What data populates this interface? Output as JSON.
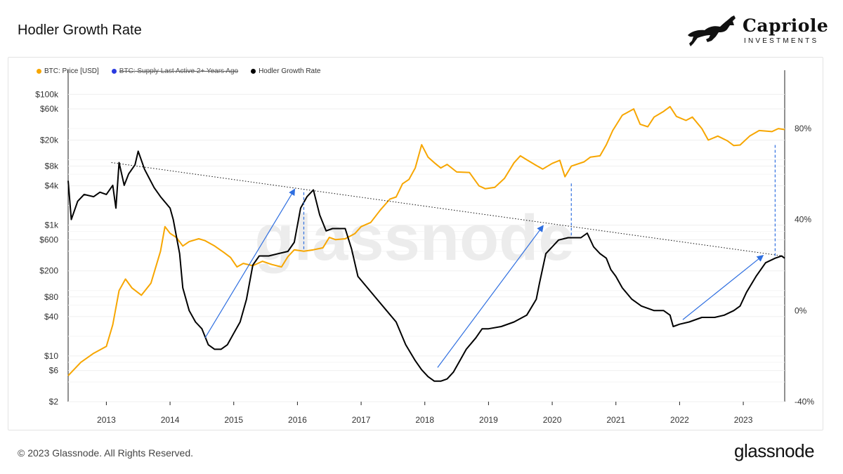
{
  "header": {
    "title": "Hodler Growth Rate"
  },
  "brand": {
    "name": "Capriole",
    "subtitle": "INVESTMENTS"
  },
  "watermark": "glassnode",
  "footer": {
    "copyright": "© 2023 Glassnode. All Rights Reserved.",
    "logo": "glassnode"
  },
  "legend": [
    {
      "label": "BTC: Price [USD]",
      "color": "#f7a600",
      "disabled": false
    },
    {
      "label": "BTC: Supply Last Active 2+ Years Ago",
      "color": "#2a3ae0",
      "disabled": true
    },
    {
      "label": "Hodler Growth Rate",
      "color": "#000000",
      "disabled": false
    }
  ],
  "chart_data": {
    "type": "line",
    "title": "Hodler Growth Rate",
    "x_ticks": [
      "2013",
      "2014",
      "2015",
      "2016",
      "2017",
      "2018",
      "2019",
      "2020",
      "2021",
      "2022",
      "2023"
    ],
    "x_range": [
      2012.4,
      2023.65
    ],
    "y_left": {
      "scale": "log",
      "range": [
        2,
        150000
      ],
      "tick_labels": [
        "$100k",
        "$60k",
        "$20k",
        "$8k",
        "$4k",
        "$1k",
        "$600",
        "$200",
        "$80",
        "$40",
        "$10",
        "$6",
        "$2"
      ],
      "tick_values": [
        100000,
        60000,
        20000,
        8000,
        4000,
        1000,
        600,
        200,
        80,
        40,
        10,
        6,
        2
      ]
    },
    "y_right": {
      "scale": "linear",
      "range": [
        -40,
        100
      ],
      "tick_labels": [
        "80%",
        "40%",
        "0%",
        "-40%"
      ],
      "tick_values": [
        80,
        40,
        0,
        -40
      ]
    },
    "grid": true,
    "legend_position": "top-left",
    "series": [
      {
        "name": "BTC: Price [USD]",
        "axis": "left",
        "color": "#f7a600",
        "points": [
          [
            2012.4,
            5
          ],
          [
            2012.6,
            8
          ],
          [
            2012.8,
            11
          ],
          [
            2013.0,
            14
          ],
          [
            2013.1,
            30
          ],
          [
            2013.2,
            100
          ],
          [
            2013.3,
            150
          ],
          [
            2013.4,
            110
          ],
          [
            2013.55,
            85
          ],
          [
            2013.7,
            130
          ],
          [
            2013.85,
            400
          ],
          [
            2013.92,
            950
          ],
          [
            2014.0,
            750
          ],
          [
            2014.1,
            650
          ],
          [
            2014.2,
            480
          ],
          [
            2014.3,
            560
          ],
          [
            2014.45,
            620
          ],
          [
            2014.55,
            580
          ],
          [
            2014.7,
            480
          ],
          [
            2014.85,
            380
          ],
          [
            2014.95,
            320
          ],
          [
            2015.05,
            230
          ],
          [
            2015.15,
            260
          ],
          [
            2015.3,
            240
          ],
          [
            2015.45,
            280
          ],
          [
            2015.6,
            250
          ],
          [
            2015.75,
            230
          ],
          [
            2015.85,
            330
          ],
          [
            2015.95,
            420
          ],
          [
            2016.1,
            400
          ],
          [
            2016.25,
            420
          ],
          [
            2016.4,
            450
          ],
          [
            2016.5,
            650
          ],
          [
            2016.6,
            600
          ],
          [
            2016.75,
            620
          ],
          [
            2016.9,
            740
          ],
          [
            2017.0,
            950
          ],
          [
            2017.15,
            1100
          ],
          [
            2017.3,
            1700
          ],
          [
            2017.45,
            2500
          ],
          [
            2017.55,
            2700
          ],
          [
            2017.65,
            4300
          ],
          [
            2017.75,
            5000
          ],
          [
            2017.85,
            7500
          ],
          [
            2017.95,
            17000
          ],
          [
            2018.05,
            11000
          ],
          [
            2018.15,
            9000
          ],
          [
            2018.25,
            7500
          ],
          [
            2018.35,
            8500
          ],
          [
            2018.5,
            6500
          ],
          [
            2018.7,
            6400
          ],
          [
            2018.85,
            4000
          ],
          [
            2018.95,
            3600
          ],
          [
            2019.1,
            3800
          ],
          [
            2019.25,
            5200
          ],
          [
            2019.4,
            9000
          ],
          [
            2019.5,
            11500
          ],
          [
            2019.6,
            10000
          ],
          [
            2019.75,
            8200
          ],
          [
            2019.85,
            7200
          ],
          [
            2020.0,
            8800
          ],
          [
            2020.12,
            9800
          ],
          [
            2020.2,
            5500
          ],
          [
            2020.3,
            8000
          ],
          [
            2020.5,
            9300
          ],
          [
            2020.6,
            11000
          ],
          [
            2020.75,
            11500
          ],
          [
            2020.85,
            17000
          ],
          [
            2020.95,
            28000
          ],
          [
            2021.1,
            48000
          ],
          [
            2021.28,
            60000
          ],
          [
            2021.38,
            35000
          ],
          [
            2021.5,
            32000
          ],
          [
            2021.6,
            45000
          ],
          [
            2021.75,
            55000
          ],
          [
            2021.85,
            65000
          ],
          [
            2021.95,
            46000
          ],
          [
            2022.1,
            40000
          ],
          [
            2022.2,
            45000
          ],
          [
            2022.35,
            30000
          ],
          [
            2022.45,
            20000
          ],
          [
            2022.6,
            23000
          ],
          [
            2022.75,
            19500
          ],
          [
            2022.85,
            16500
          ],
          [
            2022.95,
            16800
          ],
          [
            2023.1,
            23000
          ],
          [
            2023.25,
            28000
          ],
          [
            2023.45,
            27000
          ],
          [
            2023.55,
            30000
          ],
          [
            2023.65,
            29000
          ]
        ]
      },
      {
        "name": "Hodler Growth Rate",
        "axis": "right",
        "color": "#000000",
        "points": [
          [
            2012.4,
            57
          ],
          [
            2012.45,
            40
          ],
          [
            2012.55,
            48
          ],
          [
            2012.65,
            51
          ],
          [
            2012.8,
            50
          ],
          [
            2012.9,
            52
          ],
          [
            2013.0,
            51
          ],
          [
            2013.1,
            55
          ],
          [
            2013.15,
            45
          ],
          [
            2013.2,
            65
          ],
          [
            2013.28,
            55
          ],
          [
            2013.35,
            60
          ],
          [
            2013.45,
            64
          ],
          [
            2013.5,
            70
          ],
          [
            2013.6,
            62
          ],
          [
            2013.75,
            54
          ],
          [
            2013.85,
            50
          ],
          [
            2014.0,
            45
          ],
          [
            2014.05,
            40
          ],
          [
            2014.15,
            25
          ],
          [
            2014.2,
            10
          ],
          [
            2014.3,
            0
          ],
          [
            2014.4,
            -5
          ],
          [
            2014.5,
            -8
          ],
          [
            2014.6,
            -15
          ],
          [
            2014.7,
            -17
          ],
          [
            2014.8,
            -17
          ],
          [
            2014.9,
            -15
          ],
          [
            2015.0,
            -10
          ],
          [
            2015.1,
            -5
          ],
          [
            2015.2,
            5
          ],
          [
            2015.3,
            20
          ],
          [
            2015.4,
            24
          ],
          [
            2015.55,
            24
          ],
          [
            2015.7,
            25
          ],
          [
            2015.85,
            26
          ],
          [
            2015.95,
            30
          ],
          [
            2016.05,
            45
          ],
          [
            2016.15,
            50
          ],
          [
            2016.25,
            53
          ],
          [
            2016.35,
            42
          ],
          [
            2016.45,
            35
          ],
          [
            2016.55,
            36
          ],
          [
            2016.75,
            36
          ],
          [
            2016.85,
            27
          ],
          [
            2016.95,
            15
          ],
          [
            2017.1,
            10
          ],
          [
            2017.25,
            5
          ],
          [
            2017.4,
            0
          ],
          [
            2017.55,
            -5
          ],
          [
            2017.7,
            -15
          ],
          [
            2017.85,
            -22
          ],
          [
            2017.95,
            -26
          ],
          [
            2018.05,
            -29
          ],
          [
            2018.15,
            -31
          ],
          [
            2018.25,
            -31
          ],
          [
            2018.35,
            -30
          ],
          [
            2018.45,
            -27
          ],
          [
            2018.55,
            -22
          ],
          [
            2018.65,
            -17
          ],
          [
            2018.8,
            -12
          ],
          [
            2018.9,
            -8
          ],
          [
            2019.0,
            -8
          ],
          [
            2019.2,
            -7
          ],
          [
            2019.4,
            -5
          ],
          [
            2019.6,
            -2
          ],
          [
            2019.75,
            5
          ],
          [
            2019.8,
            12
          ],
          [
            2019.9,
            25
          ],
          [
            2020.0,
            28
          ],
          [
            2020.1,
            31
          ],
          [
            2020.25,
            32
          ],
          [
            2020.45,
            32
          ],
          [
            2020.55,
            34
          ],
          [
            2020.65,
            28
          ],
          [
            2020.75,
            25
          ],
          [
            2020.85,
            23
          ],
          [
            2020.92,
            18
          ],
          [
            2021.0,
            15
          ],
          [
            2021.1,
            10
          ],
          [
            2021.25,
            5
          ],
          [
            2021.4,
            2
          ],
          [
            2021.6,
            0
          ],
          [
            2021.75,
            0
          ],
          [
            2021.85,
            -2
          ],
          [
            2021.9,
            -7
          ],
          [
            2022.0,
            -6
          ],
          [
            2022.15,
            -5
          ],
          [
            2022.35,
            -3
          ],
          [
            2022.55,
            -3
          ],
          [
            2022.7,
            -2
          ],
          [
            2022.85,
            0
          ],
          [
            2022.95,
            2
          ],
          [
            2023.05,
            8
          ],
          [
            2023.2,
            15
          ],
          [
            2023.35,
            21
          ],
          [
            2023.5,
            23
          ],
          [
            2023.6,
            24
          ],
          [
            2023.65,
            23
          ]
        ]
      }
    ]
  }
}
